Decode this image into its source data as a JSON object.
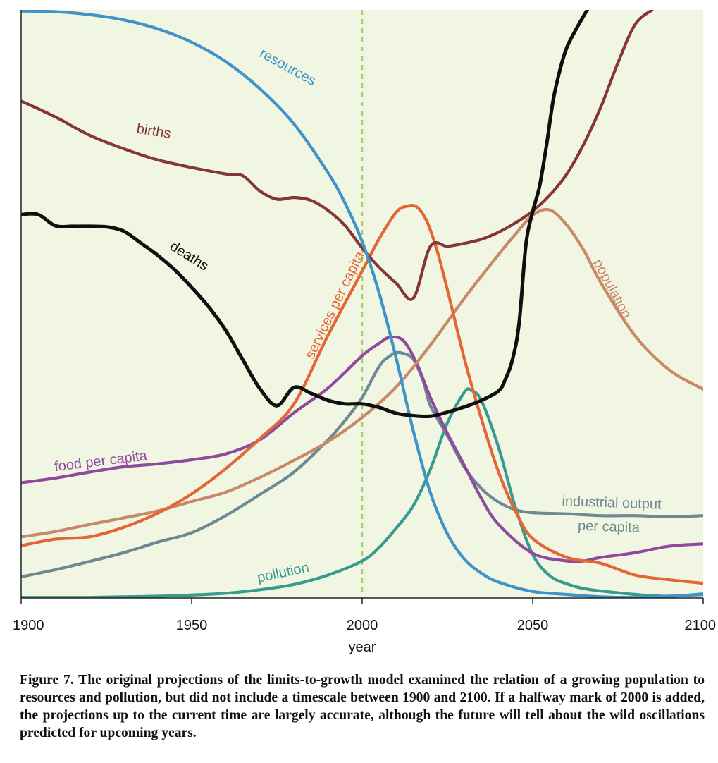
{
  "chart_data": {
    "type": "line",
    "title": "",
    "xlabel": "year",
    "ylabel": "",
    "xlim": [
      1900,
      2100
    ],
    "ylim": [
      0,
      100
    ],
    "xticks": [
      1900,
      1950,
      2000,
      2050,
      2100
    ],
    "xtick_labels": [
      "1900",
      "1950",
      "2000",
      "2050",
      "2100"
    ],
    "marker_year": 2000,
    "colors": {
      "background": "#f1f6e3",
      "marker": "#a8cc6a",
      "axis": "#222222"
    },
    "series": [
      {
        "name": "resources",
        "label": "resources",
        "color": "#3f93c8",
        "x": [
          1900,
          1910,
          1920,
          1930,
          1940,
          1950,
          1960,
          1970,
          1980,
          1990,
          1995,
          2000,
          2005,
          2010,
          2015,
          2020,
          2025,
          2030,
          2035,
          2040,
          2050,
          2060,
          2070,
          2080,
          2090,
          2100
        ],
        "y": [
          99.8,
          99.7,
          99.2,
          98.3,
          96.8,
          94.5,
          91.2,
          86.6,
          80.6,
          72.3,
          67.1,
          60.6,
          51.8,
          40.7,
          28.4,
          17.9,
          10.9,
          6.6,
          4.2,
          2.7,
          1.1,
          0.6,
          0.2,
          0.1,
          0.3,
          0.6
        ]
      },
      {
        "name": "births",
        "label": "births",
        "color": "#84363b",
        "x": [
          1900,
          1910,
          1920,
          1930,
          1940,
          1950,
          1960,
          1965,
          1970,
          1975,
          1980,
          1985,
          1990,
          1995,
          2000,
          2005,
          2010,
          2015,
          2020,
          2025,
          2030,
          2035,
          2040,
          2045,
          2050,
          2055,
          2060,
          2065,
          2070,
          2075,
          2080,
          2085
        ],
        "y": [
          84.5,
          81.8,
          78.7,
          76.4,
          74.5,
          73.2,
          72.1,
          71.8,
          69.2,
          67.8,
          68.1,
          67.6,
          65.9,
          63.3,
          59.5,
          56.2,
          53.5,
          51.0,
          59.8,
          59.8,
          60.3,
          61.0,
          62.2,
          63.8,
          65.8,
          68.5,
          72.1,
          77.2,
          83.5,
          91.0,
          97.5,
          100
        ]
      },
      {
        "name": "deaths",
        "label": "deaths",
        "color": "#0f0f0f",
        "x": [
          1900,
          1905,
          1910,
          1915,
          1920,
          1925,
          1930,
          1935,
          1940,
          1945,
          1950,
          1955,
          1960,
          1965,
          1970,
          1975,
          1980,
          1985,
          1990,
          1995,
          2000,
          2005,
          2010,
          2015,
          2020,
          2025,
          2030,
          2035,
          2040,
          2042,
          2044,
          2046,
          2048,
          2050,
          2052,
          2054,
          2056,
          2058,
          2060,
          2063,
          2066
        ],
        "y": [
          65.2,
          65.2,
          63.3,
          63.2,
          63.2,
          63.1,
          62.4,
          60.4,
          58.3,
          55.8,
          52.8,
          49.5,
          45.5,
          40.5,
          35.6,
          32.7,
          35.8,
          34.8,
          33.6,
          33.0,
          33.0,
          32.4,
          31.4,
          31.0,
          30.9,
          31.6,
          32.5,
          33.6,
          35.2,
          37.2,
          40.4,
          46.6,
          60.0,
          65.7,
          70.0,
          76.8,
          84.6,
          89.8,
          93.6,
          97.0,
          100
        ]
      },
      {
        "name": "services per capita",
        "label": "services per capita",
        "color": "#e46535",
        "x": [
          1900,
          1910,
          1920,
          1930,
          1940,
          1950,
          1960,
          1970,
          1980,
          1990,
          2000,
          2005,
          2010,
          2013,
          2016,
          2019,
          2022,
          2025,
          2030,
          2035,
          2040,
          2045,
          2050,
          2060,
          2070,
          2080,
          2090,
          2100
        ],
        "y": [
          8.9,
          10.0,
          10.4,
          12.0,
          14.4,
          17.7,
          22.0,
          27.1,
          33.0,
          44.7,
          55.6,
          61.1,
          65.6,
          66.6,
          66.5,
          64.0,
          59.0,
          52.4,
          40.6,
          30.4,
          21.4,
          14.7,
          10.1,
          6.9,
          5.9,
          3.9,
          3.1,
          2.5
        ]
      },
      {
        "name": "population",
        "label": "population",
        "color": "#c9886a",
        "x": [
          1900,
          1910,
          1920,
          1930,
          1940,
          1950,
          1960,
          1970,
          1980,
          1990,
          2000,
          2010,
          2020,
          2030,
          2040,
          2045,
          2050,
          2055,
          2060,
          2065,
          2070,
          2080,
          2090,
          2100
        ],
        "y": [
          10.4,
          11.3,
          12.5,
          13.6,
          14.8,
          16.4,
          18.0,
          20.5,
          23.4,
          26.6,
          30.7,
          35.9,
          43.0,
          51.0,
          58.4,
          61.9,
          65.1,
          66.0,
          63.4,
          59.1,
          53.6,
          44.6,
          38.8,
          35.5
        ]
      },
      {
        "name": "food per capita",
        "label": "food per capita",
        "color": "#8f4a9f",
        "x": [
          1900,
          1910,
          1920,
          1930,
          1940,
          1950,
          1960,
          1970,
          1980,
          1990,
          2000,
          2005,
          2008,
          2012,
          2016,
          2020,
          2025,
          2030,
          2035,
          2040,
          2050,
          2060,
          2065,
          2070,
          2080,
          2090,
          2100
        ],
        "y": [
          19.6,
          20.4,
          21.4,
          22.3,
          22.8,
          23.5,
          24.5,
          26.9,
          31.5,
          35.7,
          41.2,
          43.3,
          44.3,
          43.8,
          39.9,
          34.1,
          28.0,
          22.5,
          16.9,
          12.5,
          7.6,
          6.3,
          6.3,
          6.9,
          7.7,
          8.8,
          9.2
        ]
      },
      {
        "name": "industrial output per capita",
        "label": "industrial output",
        "label2": "per capita",
        "color": "#6d8a92",
        "x": [
          1900,
          1910,
          1920,
          1930,
          1940,
          1950,
          1960,
          1970,
          1980,
          1990,
          1995,
          2000,
          2005,
          2008,
          2010,
          2012,
          2015,
          2018,
          2020,
          2025,
          2030,
          2035,
          2040,
          2045,
          2050,
          2060,
          2070,
          2080,
          2090,
          2100
        ],
        "y": [
          3.6,
          4.8,
          6.2,
          7.7,
          9.5,
          11.1,
          14.0,
          17.6,
          21.4,
          26.9,
          30.2,
          34.1,
          39.4,
          41.1,
          41.7,
          41.6,
          40.6,
          36.7,
          32.7,
          27.6,
          22.2,
          18.6,
          16.3,
          15.0,
          14.5,
          14.3,
          14.0,
          14.0,
          13.8,
          14.0
        ]
      },
      {
        "name": "pollution",
        "label": "pollution",
        "color": "#399a8f",
        "x": [
          1900,
          1910,
          1920,
          1930,
          1940,
          1950,
          1960,
          1970,
          1980,
          1990,
          2000,
          2005,
          2010,
          2015,
          2020,
          2025,
          2030,
          2032,
          2035,
          2040,
          2045,
          2050,
          2055,
          2060,
          2065,
          2070,
          2080,
          2090,
          2100
        ],
        "y": [
          0.1,
          0.1,
          0.1,
          0.2,
          0.3,
          0.5,
          0.8,
          1.4,
          2.3,
          3.9,
          6.3,
          8.6,
          11.9,
          15.7,
          21.9,
          29.8,
          35.0,
          35.3,
          33.5,
          25.6,
          15.3,
          7.4,
          3.8,
          2.4,
          1.6,
          1.2,
          0.6,
          0.3,
          0.7
        ]
      }
    ]
  },
  "caption": "Figure 7. The original projections of the limits-to-growth model examined the relation of a growing population to resources and pollution, but did not include a timescale between 1900 and 2100. If a halfway mark of 2000 is added, the projections up to the current time are largely accurate, although the future will tell about the wild oscillations predicted for upcoming years."
}
